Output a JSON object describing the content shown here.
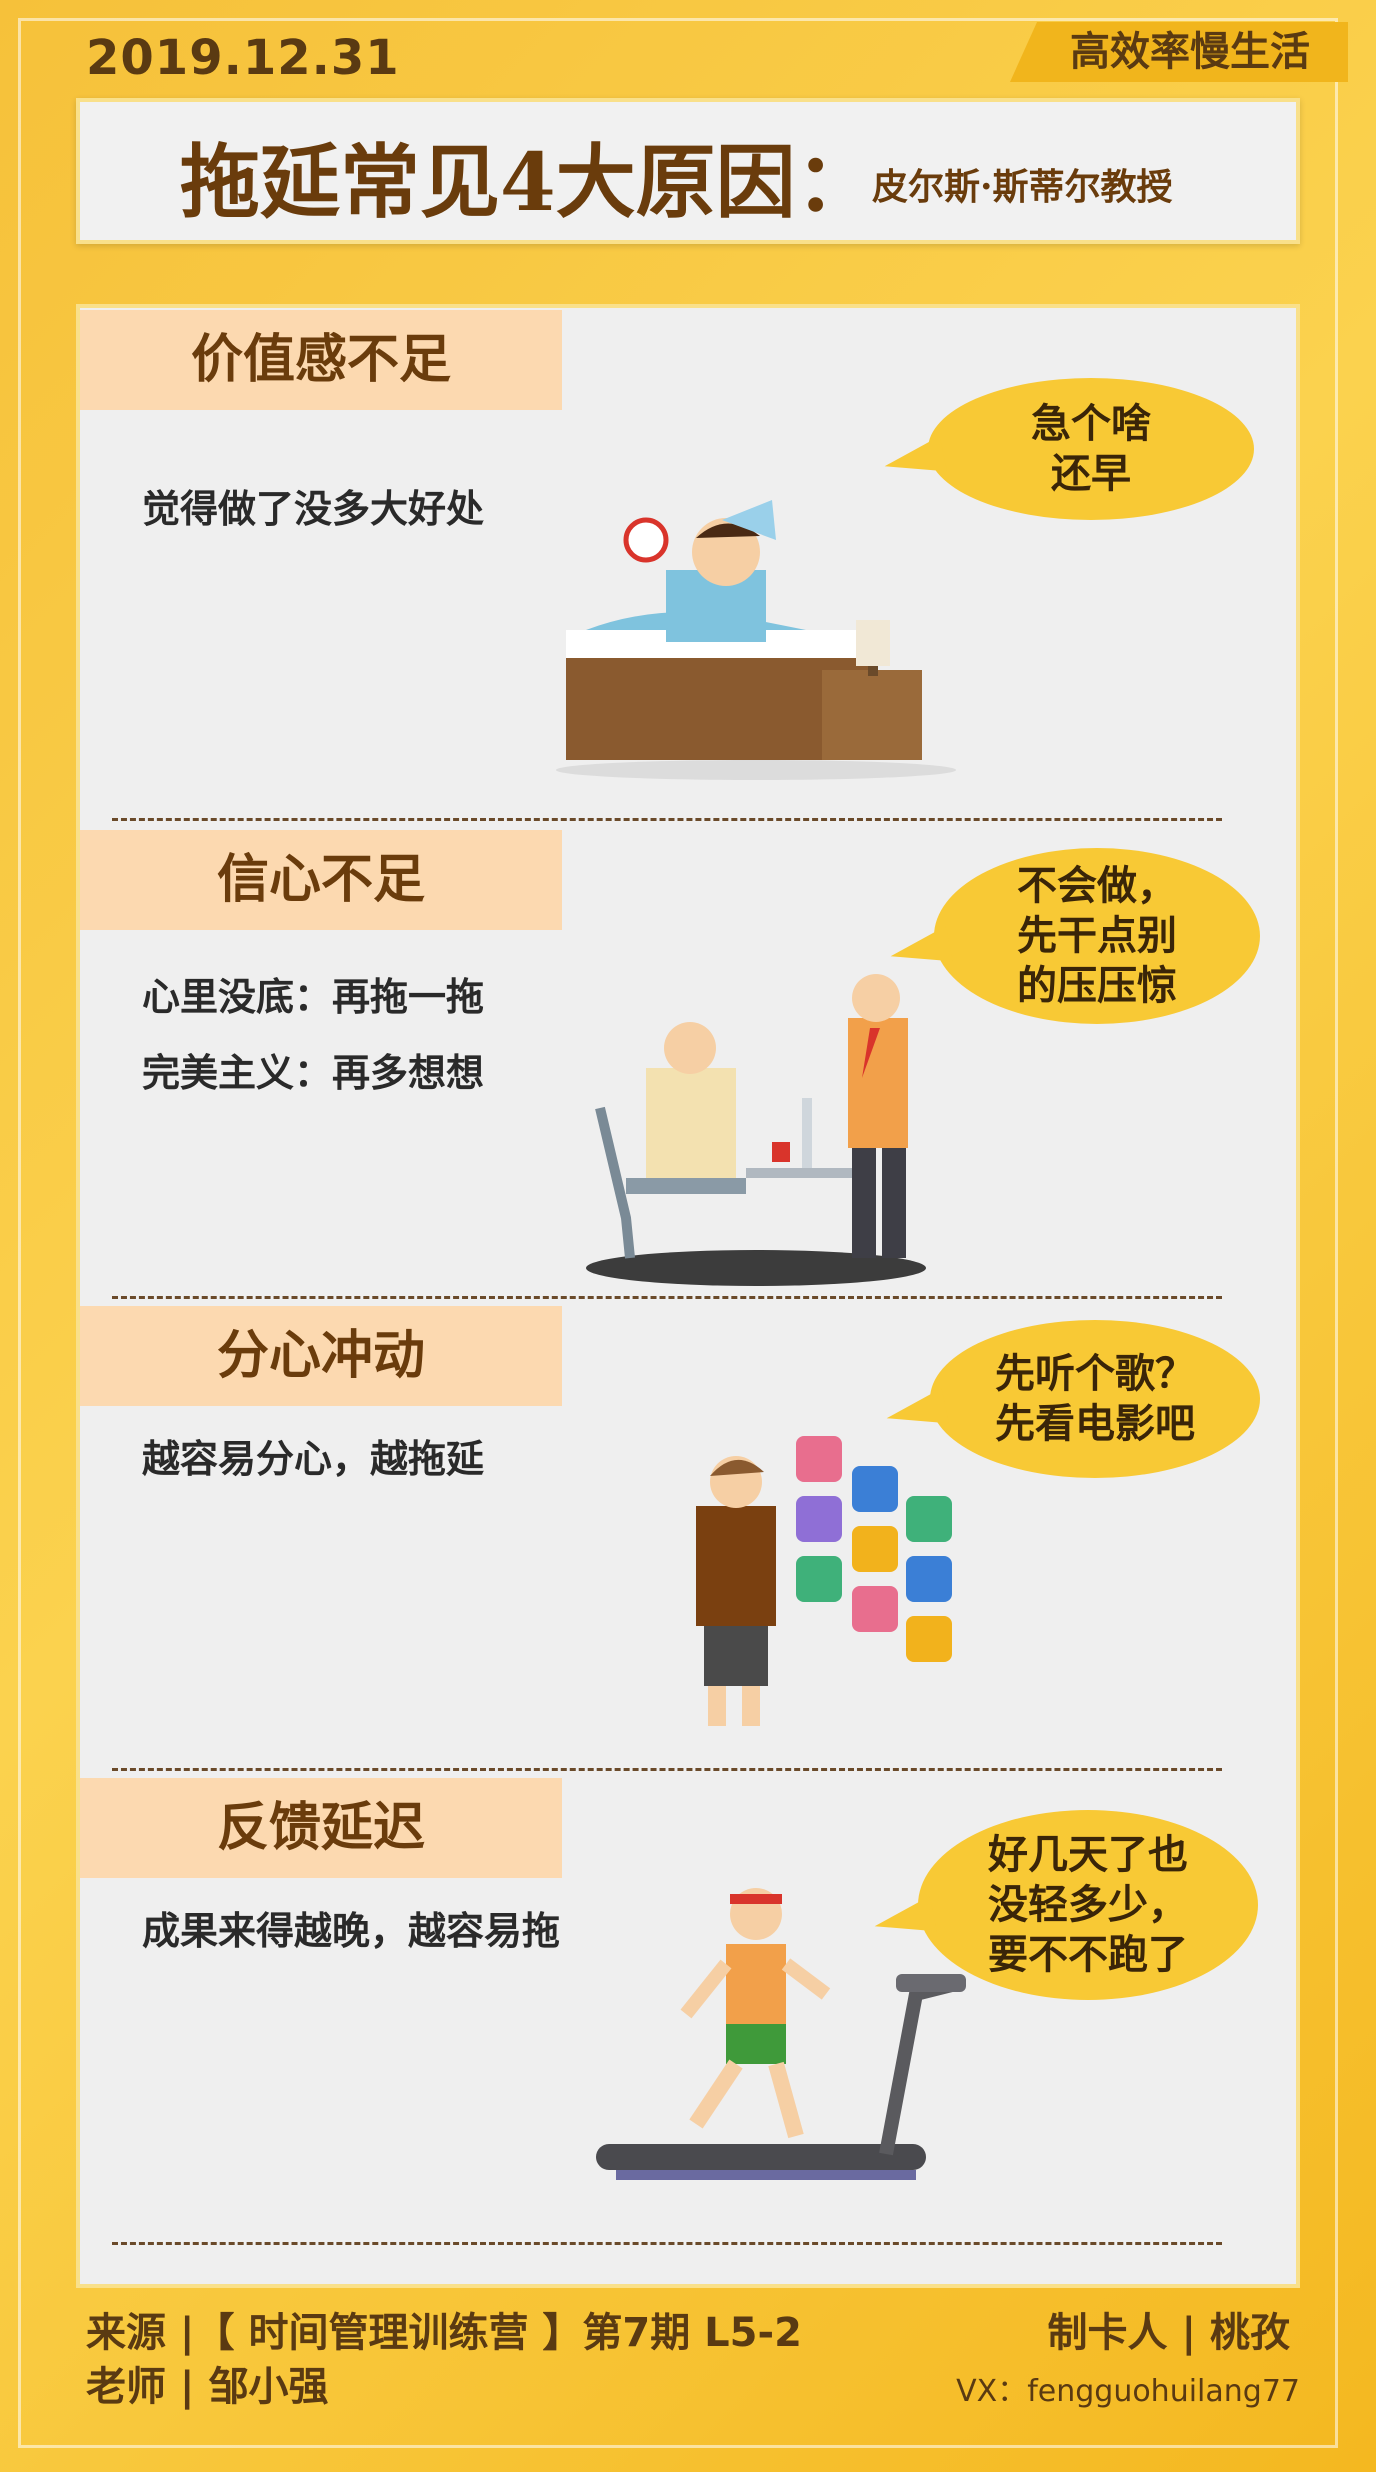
{
  "header": {
    "date": "2019.12.31",
    "brand": "高效率慢生活",
    "title": "拖延常见4大原因：",
    "subtitle": "皮尔斯·斯蒂尔教授"
  },
  "sections": [
    {
      "tag": "价值感不足",
      "lines": [
        "觉得做了没多大好处"
      ],
      "bubble": [
        "急个啥",
        "还早"
      ]
    },
    {
      "tag": "信心不足",
      "lines": [
        "心里没底：再拖一拖",
        "完美主义：再多想想"
      ],
      "bubble": [
        "不会做，",
        "先干点别",
        "的压压惊"
      ]
    },
    {
      "tag": "分心冲动",
      "lines": [
        "越容易分心，越拖延"
      ],
      "bubble": [
        "先听个歌？",
        "先看电影吧"
      ]
    },
    {
      "tag": "反馈延迟",
      "lines": [
        "成果来得越晚，越容易拖"
      ],
      "bubble": [
        "好几天了也",
        "没轻多少，",
        "要不不跑了"
      ]
    }
  ],
  "footer": {
    "source": "来源 |【 时间管理训练营 】第7期  L5-2",
    "teacher": "老师 | 邹小强",
    "maker": "制卡人 | 桃孜",
    "vx": "VX：fengguohuilang77"
  },
  "colors": {
    "background": "#f6c13a",
    "panel": "#efefef",
    "tag": "#fcd9b0",
    "bubble": "#f8c935",
    "text_brown": "#6a3c0c"
  }
}
